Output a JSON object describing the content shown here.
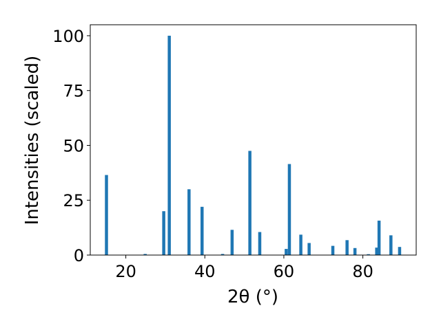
{
  "chart_data": {
    "type": "bar",
    "title": "",
    "xlabel": "2θ (°)",
    "ylabel": "Intensities (scaled)",
    "xlim": [
      11,
      93.5
    ],
    "ylim": [
      0,
      105
    ],
    "xticks": [
      20,
      40,
      60,
      80
    ],
    "yticks": [
      0,
      25,
      50,
      75,
      100
    ],
    "grid": false,
    "legend": "none",
    "bar_color": "#1f77b4",
    "x": [
      15.1,
      24.9,
      29.6,
      31.0,
      36.0,
      39.3,
      44.5,
      46.9,
      51.4,
      53.9,
      60.6,
      61.4,
      64.3,
      66.4,
      72.4,
      76.0,
      78.0,
      81.4,
      83.5,
      84.1,
      87.1,
      89.3
    ],
    "values": [
      36.5,
      0.5,
      20.0,
      100.0,
      30.0,
      22.0,
      0.5,
      11.5,
      47.5,
      10.5,
      2.8,
      41.5,
      9.3,
      5.5,
      4.2,
      6.8,
      3.2,
      0.4,
      3.4,
      15.7,
      9.0,
      3.7
    ]
  }
}
